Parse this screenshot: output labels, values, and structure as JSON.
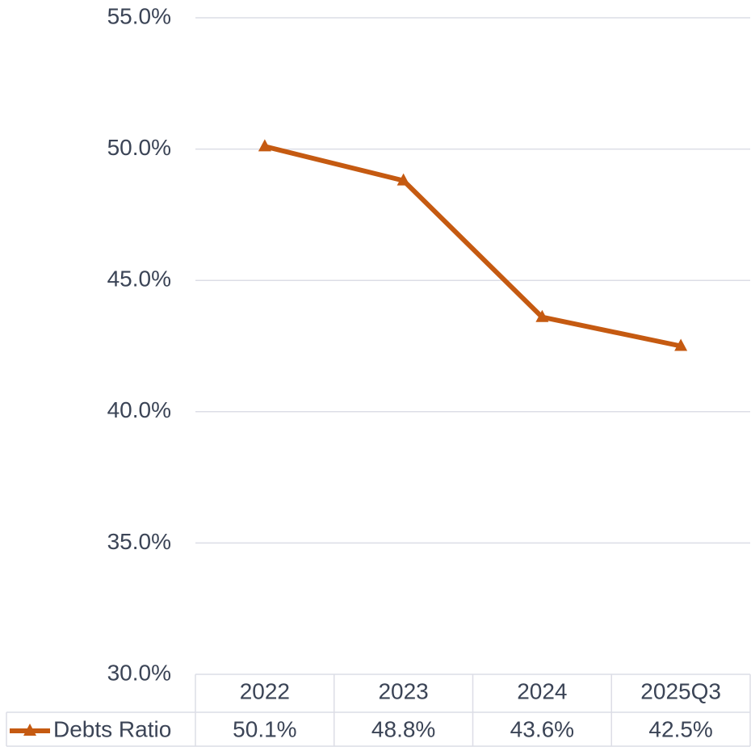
{
  "chart_data": {
    "type": "line",
    "categories": [
      "2022",
      "2023",
      "2024",
      "2025Q3"
    ],
    "series": [
      {
        "name": "Debts Ratio",
        "color": "#c55a11",
        "values": [
          50.1,
          48.8,
          43.6,
          42.5
        ],
        "value_labels": [
          "50.1%",
          "48.8%",
          "43.6%",
          "42.5%"
        ]
      }
    ],
    "ylim": [
      30,
      55
    ],
    "yticks": [
      {
        "value": 30,
        "label": "30.0%"
      },
      {
        "value": 35,
        "label": "35.0%"
      },
      {
        "value": 40,
        "label": "40.0%"
      },
      {
        "value": 45,
        "label": "45.0%"
      },
      {
        "value": 50,
        "label": "50.0%"
      },
      {
        "value": 55,
        "label": "55.0%"
      }
    ],
    "grid": true,
    "data_table": true
  }
}
